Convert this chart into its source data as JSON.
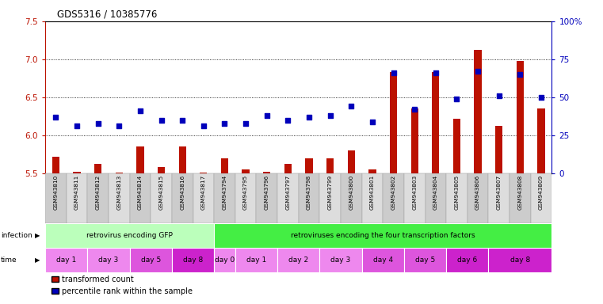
{
  "title": "GDS5316 / 10385776",
  "samples": [
    "GSM943810",
    "GSM943811",
    "GSM943812",
    "GSM943813",
    "GSM943814",
    "GSM943815",
    "GSM943816",
    "GSM943817",
    "GSM943794",
    "GSM943795",
    "GSM943796",
    "GSM943797",
    "GSM943798",
    "GSM943799",
    "GSM943800",
    "GSM943801",
    "GSM943802",
    "GSM943803",
    "GSM943804",
    "GSM943805",
    "GSM943806",
    "GSM943807",
    "GSM943808",
    "GSM943809"
  ],
  "red_values": [
    5.72,
    5.52,
    5.62,
    5.51,
    5.85,
    5.58,
    5.85,
    5.51,
    5.7,
    5.55,
    5.52,
    5.62,
    5.7,
    5.7,
    5.8,
    5.55,
    6.83,
    6.35,
    6.83,
    6.22,
    7.12,
    6.12,
    6.98,
    6.35
  ],
  "blue_values": [
    37,
    31,
    33,
    31,
    41,
    35,
    35,
    31,
    33,
    33,
    38,
    35,
    37,
    38,
    44,
    34,
    66,
    42,
    66,
    49,
    67,
    51,
    65,
    50
  ],
  "ylim_left": [
    5.5,
    7.5
  ],
  "ylim_right": [
    0,
    100
  ],
  "yticks_left": [
    5.5,
    6.0,
    6.5,
    7.0,
    7.5
  ],
  "yticks_right": [
    0,
    25,
    50,
    75,
    100
  ],
  "ytick_labels_right": [
    "0",
    "25",
    "50",
    "75",
    "100%"
  ],
  "infection_groups": [
    {
      "label": "retrovirus encoding GFP",
      "start": 0,
      "end": 8,
      "color": "#bbffbb"
    },
    {
      "label": "retroviruses encoding the four transcription factors",
      "start": 8,
      "end": 24,
      "color": "#44ee44"
    }
  ],
  "time_groups": [
    {
      "label": "day 1",
      "start": 0,
      "end": 2,
      "color": "#ee88ee"
    },
    {
      "label": "day 3",
      "start": 2,
      "end": 4,
      "color": "#ee88ee"
    },
    {
      "label": "day 5",
      "start": 4,
      "end": 6,
      "color": "#dd55dd"
    },
    {
      "label": "day 8",
      "start": 6,
      "end": 8,
      "color": "#cc22cc"
    },
    {
      "label": "day 0",
      "start": 8,
      "end": 9,
      "color": "#ee88ee"
    },
    {
      "label": "day 1",
      "start": 9,
      "end": 11,
      "color": "#ee88ee"
    },
    {
      "label": "day 2",
      "start": 11,
      "end": 13,
      "color": "#ee88ee"
    },
    {
      "label": "day 3",
      "start": 13,
      "end": 15,
      "color": "#ee88ee"
    },
    {
      "label": "day 4",
      "start": 15,
      "end": 17,
      "color": "#dd55dd"
    },
    {
      "label": "day 5",
      "start": 17,
      "end": 19,
      "color": "#dd55dd"
    },
    {
      "label": "day 6",
      "start": 19,
      "end": 21,
      "color": "#cc22cc"
    },
    {
      "label": "day 8",
      "start": 21,
      "end": 24,
      "color": "#cc22cc"
    }
  ],
  "bar_color": "#bb1100",
  "dot_color": "#0000bb",
  "baseline": 5.5,
  "bg_color": "#ffffff",
  "legend_items": [
    {
      "color": "#bb1100",
      "label": "transformed count"
    },
    {
      "color": "#0000bb",
      "label": "percentile rank within the sample"
    }
  ]
}
